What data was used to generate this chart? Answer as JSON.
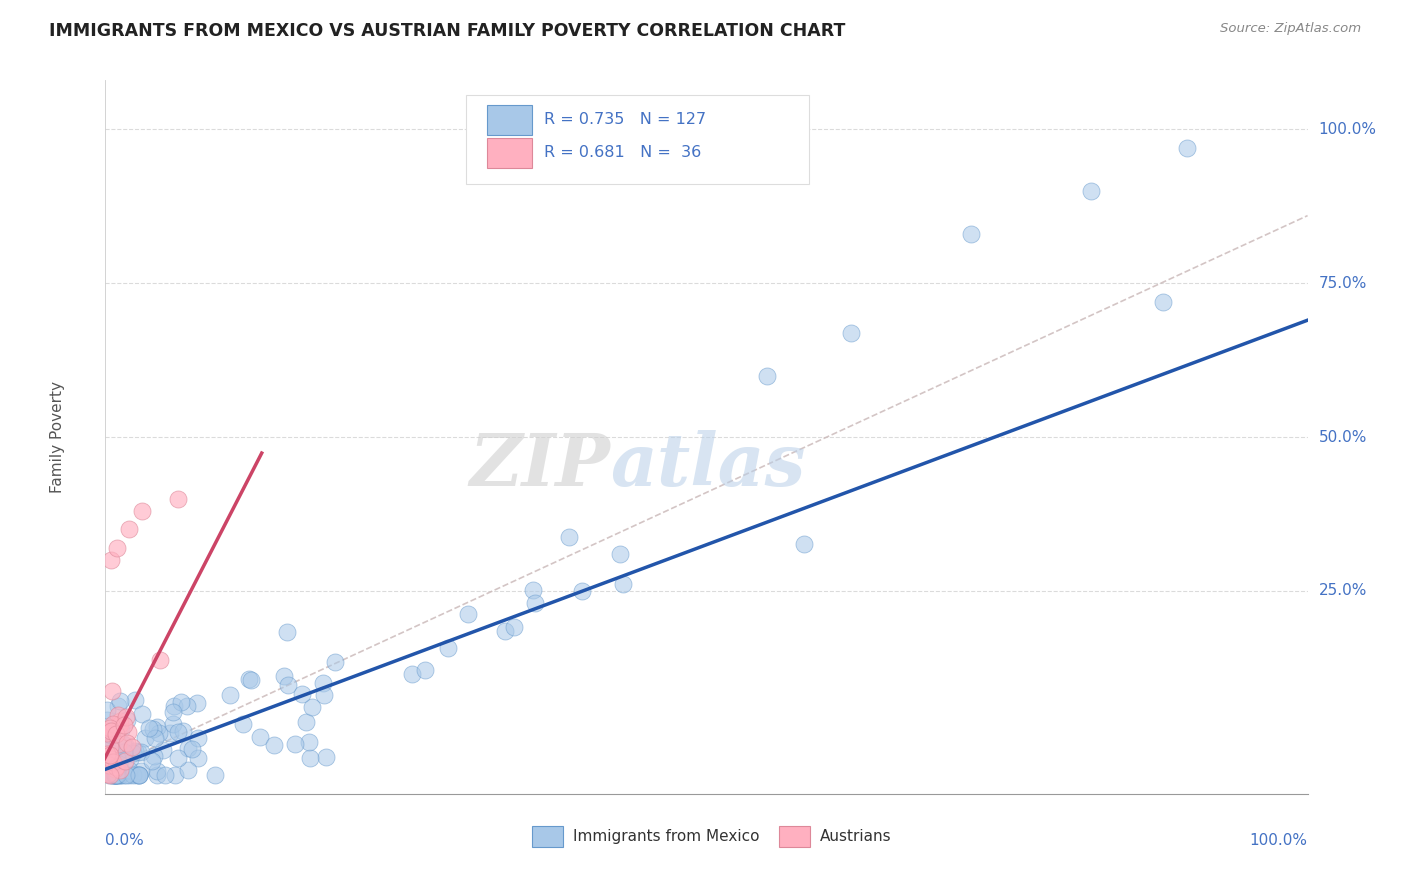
{
  "title": "IMMIGRANTS FROM MEXICO VS AUSTRIAN FAMILY POVERTY CORRELATION CHART",
  "source_text": "Source: ZipAtlas.com",
  "ylabel": "Family Poverty",
  "blue_label": "Immigrants from Mexico",
  "pink_label": "Austrians",
  "R1": "0.735",
  "N1": "127",
  "R2": "0.681",
  "N2": "36",
  "blue_fill": "#a8c8e8",
  "blue_edge": "#6699cc",
  "blue_line": "#2255aa",
  "pink_fill": "#ffb0c0",
  "pink_edge": "#dd8899",
  "pink_line": "#cc4466",
  "dashed_color": "#ccbbbb",
  "grid_color": "#cccccc",
  "axis_label_color": "#4472c4",
  "background": "#ffffff",
  "title_color": "#222222",
  "source_color": "#888888",
  "ytick_pcts": [
    "25.0%",
    "50.0%",
    "75.0%",
    "100.0%"
  ],
  "ytick_vals": [
    0.25,
    0.5,
    0.75,
    1.0
  ],
  "blue_slope": 0.73,
  "blue_intercept": -0.04,
  "pink_slope": 3.8,
  "pink_intercept": -0.02,
  "dashed_slope": 0.9,
  "dashed_intercept": -0.04
}
